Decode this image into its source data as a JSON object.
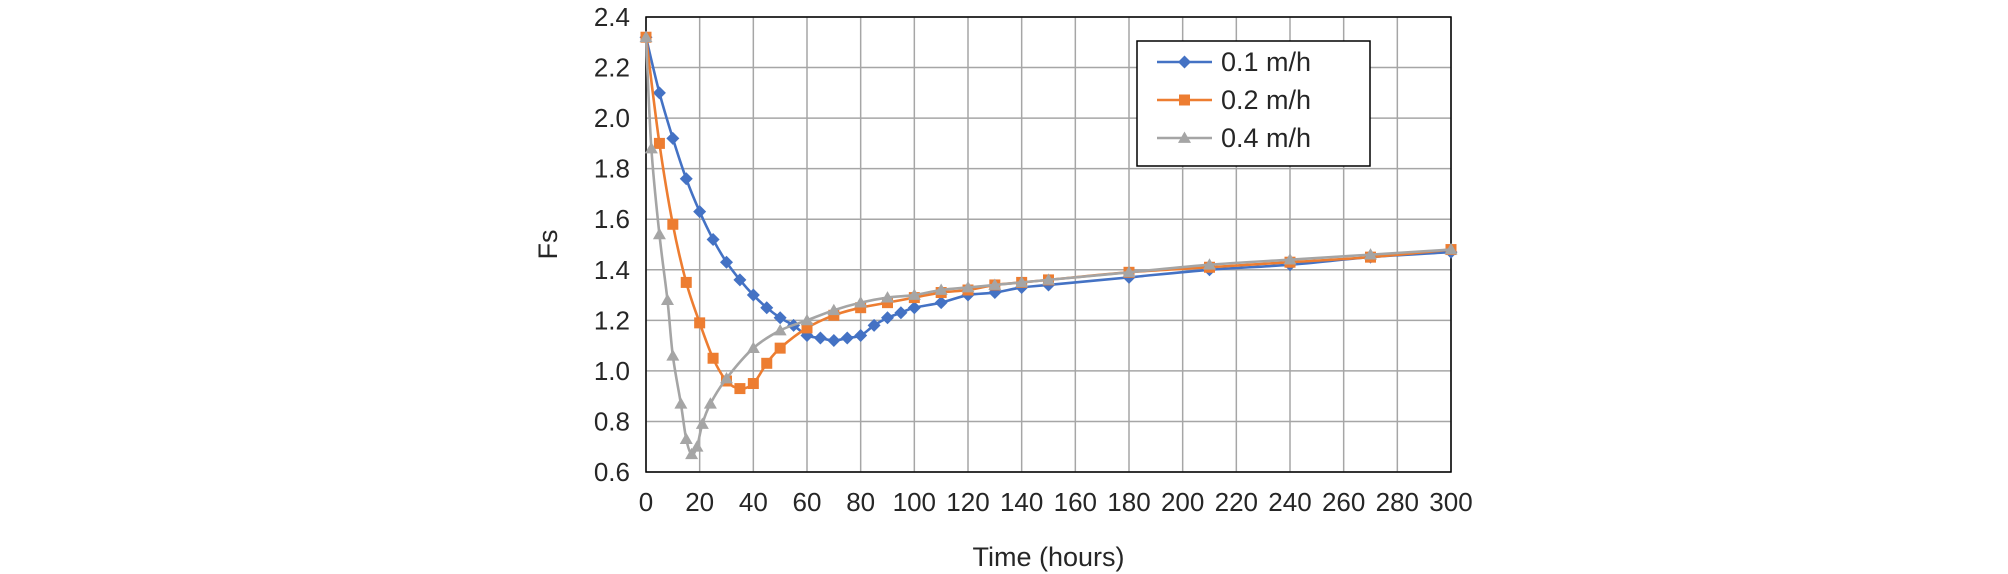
{
  "chart_data": {
    "type": "line",
    "title": "",
    "xlabel": "Time (hours)",
    "ylabel": "Fs",
    "xlim": [
      0,
      300
    ],
    "ylim": [
      0.6,
      2.4
    ],
    "xticks": [
      "0",
      "20",
      "40",
      "60",
      "80",
      "100",
      "120",
      "140",
      "160",
      "180",
      "200",
      "220",
      "240",
      "260",
      "280",
      "300"
    ],
    "yticks": [
      "0.6",
      "0.8",
      "1.0",
      "1.2",
      "1.4",
      "1.6",
      "1.8",
      "2.0",
      "2.2",
      "2.4"
    ],
    "grid": true,
    "legend_position": "top-right",
    "series": [
      {
        "name": "0.1 m/h",
        "color": "#4472C4",
        "marker": "diamond",
        "x": [
          0,
          5,
          10,
          15,
          20,
          25,
          30,
          35,
          40,
          45,
          50,
          55,
          60,
          65,
          70,
          75,
          80,
          85,
          90,
          95,
          100,
          110,
          120,
          130,
          140,
          150,
          180,
          210,
          240,
          270,
          300
        ],
        "y": [
          2.32,
          2.1,
          1.92,
          1.76,
          1.63,
          1.52,
          1.43,
          1.36,
          1.3,
          1.25,
          1.21,
          1.18,
          1.14,
          1.13,
          1.12,
          1.13,
          1.14,
          1.18,
          1.21,
          1.23,
          1.25,
          1.27,
          1.3,
          1.31,
          1.33,
          1.34,
          1.37,
          1.4,
          1.42,
          1.45,
          1.47
        ]
      },
      {
        "name": "0.2 m/h",
        "color": "#ED7D31",
        "marker": "square",
        "x": [
          0,
          5,
          10,
          15,
          20,
          25,
          30,
          35,
          40,
          45,
          50,
          60,
          70,
          80,
          90,
          100,
          110,
          120,
          130,
          140,
          150,
          180,
          210,
          240,
          270,
          300
        ],
        "y": [
          2.32,
          1.9,
          1.58,
          1.35,
          1.19,
          1.05,
          0.96,
          0.93,
          0.95,
          1.03,
          1.09,
          1.17,
          1.22,
          1.25,
          1.27,
          1.29,
          1.31,
          1.32,
          1.34,
          1.35,
          1.36,
          1.39,
          1.41,
          1.43,
          1.45,
          1.48
        ]
      },
      {
        "name": "0.4 m/h",
        "color": "#A5A5A5",
        "marker": "triangle",
        "x": [
          0,
          2,
          5,
          8,
          10,
          13,
          15,
          17,
          19,
          21,
          24,
          30,
          40,
          50,
          60,
          70,
          80,
          90,
          100,
          110,
          120,
          130,
          140,
          150,
          180,
          210,
          240,
          270,
          300
        ],
        "y": [
          2.32,
          1.88,
          1.54,
          1.28,
          1.06,
          0.87,
          0.73,
          0.67,
          0.7,
          0.79,
          0.87,
          0.97,
          1.09,
          1.16,
          1.2,
          1.24,
          1.27,
          1.29,
          1.3,
          1.32,
          1.33,
          1.34,
          1.35,
          1.36,
          1.39,
          1.42,
          1.44,
          1.46,
          1.48
        ]
      }
    ]
  }
}
